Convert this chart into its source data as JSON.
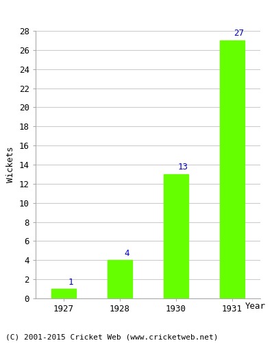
{
  "categories": [
    "1927",
    "1928",
    "1930",
    "1931"
  ],
  "values": [
    1,
    4,
    13,
    27
  ],
  "bar_color": "#66ff00",
  "bar_edge_color": "#66ff00",
  "label_color": "#0000cc",
  "xlabel": "Year",
  "ylabel": "Wickets",
  "ylim": [
    0,
    28
  ],
  "yticks": [
    0,
    2,
    4,
    6,
    8,
    10,
    12,
    14,
    16,
    18,
    20,
    22,
    24,
    26,
    28
  ],
  "grid_color": "#cccccc",
  "background_color": "#ffffff",
  "plot_bg_color": "#ffffff",
  "footer": "(C) 2001-2015 Cricket Web (www.cricketweb.net)",
  "label_fontsize": 9,
  "axis_label_fontsize": 9,
  "tick_fontsize": 9,
  "footer_fontsize": 8
}
